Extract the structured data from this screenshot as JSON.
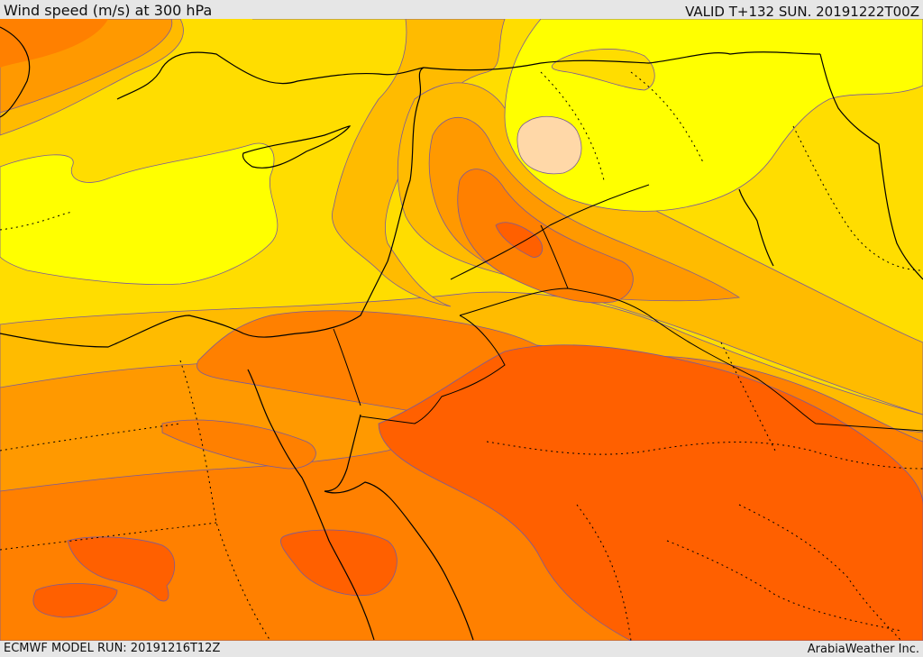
{
  "header": {
    "title": "Wind speed (m/s) at 300 hPa",
    "valid": "VALID T+132 SUN. 20191222T00Z"
  },
  "footer": {
    "model_run": "ECMWF MODEL RUN: 20191216T12Z",
    "credit": "ArabiaWeather Inc."
  },
  "colors": {
    "band_1": "#ffd8a8",
    "band_2": "#ffff00",
    "band_3": "#ffdd00",
    "band_4": "#ffbb00",
    "band_5": "#ff9900",
    "band_6": "#ff8000",
    "band_7": "#ff6000",
    "contour": "#7a5a9a",
    "coastline": "#000000"
  }
}
